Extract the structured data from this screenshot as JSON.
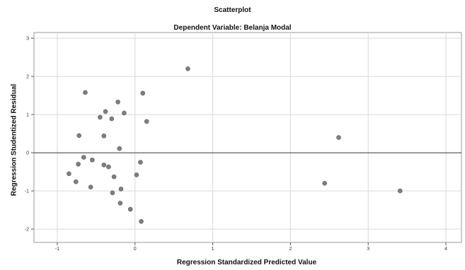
{
  "chart_data": {
    "type": "scatter",
    "title": "Scatterplot",
    "subtitle": "Dependent Variable: Belanja Modal",
    "xlabel": "Regression Standardized Predicted Value",
    "ylabel": "Regression Studentized Residual",
    "xlim": [
      -1.3,
      4.2
    ],
    "ylim": [
      -2.35,
      3.15
    ],
    "xticks": [
      -1,
      0,
      1,
      2,
      3,
      4
    ],
    "yticks": [
      -2,
      -1,
      0,
      1,
      2,
      3
    ],
    "grid": true,
    "colors": {
      "point": "#7f7f7f",
      "grid": "#d9d9d9",
      "axis": "#000000",
      "frame": "#9a9a9a"
    },
    "points": [
      {
        "x": 0.68,
        "y": 2.2
      },
      {
        "x": -0.64,
        "y": 1.58
      },
      {
        "x": 0.1,
        "y": 1.56
      },
      {
        "x": -0.22,
        "y": 1.33
      },
      {
        "x": -0.38,
        "y": 1.08
      },
      {
        "x": -0.14,
        "y": 1.04
      },
      {
        "x": -0.45,
        "y": 0.93
      },
      {
        "x": -0.3,
        "y": 0.89
      },
      {
        "x": 0.15,
        "y": 0.82
      },
      {
        "x": -0.72,
        "y": 0.45
      },
      {
        "x": -0.4,
        "y": 0.44
      },
      {
        "x": -0.2,
        "y": 0.11
      },
      {
        "x": -0.66,
        "y": -0.12
      },
      {
        "x": -0.55,
        "y": -0.19
      },
      {
        "x": 0.07,
        "y": -0.25
      },
      {
        "x": -0.73,
        "y": -0.3
      },
      {
        "x": -0.4,
        "y": -0.32
      },
      {
        "x": -0.34,
        "y": -0.37
      },
      {
        "x": -0.85,
        "y": -0.55
      },
      {
        "x": 0.02,
        "y": -0.58
      },
      {
        "x": -0.27,
        "y": -0.63
      },
      {
        "x": -0.76,
        "y": -0.76
      },
      {
        "x": -0.57,
        "y": -0.9
      },
      {
        "x": -0.18,
        "y": -0.95
      },
      {
        "x": -0.29,
        "y": -1.05
      },
      {
        "x": -0.19,
        "y": -1.32
      },
      {
        "x": -0.06,
        "y": -1.48
      },
      {
        "x": 0.08,
        "y": -1.8
      },
      {
        "x": 2.62,
        "y": 0.4
      },
      {
        "x": 2.44,
        "y": -0.8
      },
      {
        "x": 3.41,
        "y": -1.0
      }
    ]
  }
}
